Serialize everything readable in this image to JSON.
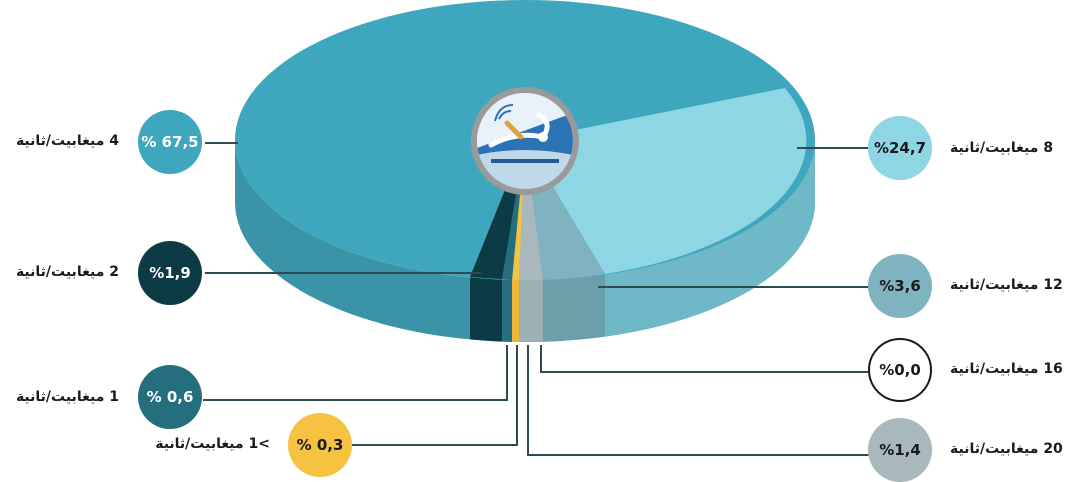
{
  "chart_data": {
    "type": "pie",
    "style": "3d",
    "unit_suffix": "ميغابيت/ثانية",
    "slices": [
      {
        "key": "4",
        "speed": "4",
        "value_label": "% 67,5",
        "value": 67.5,
        "color": "#3fa7bd",
        "circle_text": "#ffffff"
      },
      {
        "key": "8",
        "speed": "8",
        "value_label": "%24,7",
        "value": 24.7,
        "color": "#8fd6e5",
        "circle_text": "#1a1a1a"
      },
      {
        "key": "12",
        "speed": "12",
        "value_label": "%3,6",
        "value": 3.6,
        "color": "#7fb3bf",
        "circle_text": "#1a1a1a"
      },
      {
        "key": "16",
        "speed": "16",
        "value_label": "%0,0",
        "value": 0.0,
        "color": "#ffffff",
        "circle_text": "#1a1a1a"
      },
      {
        "key": "20",
        "speed": "20",
        "value_label": "%1,4",
        "value": 1.4,
        "color": "#a8b8bc",
        "circle_text": "#1a1a1a"
      },
      {
        "key": "lt1",
        "speed": ">1",
        "value_label": "% 0,3",
        "value": 0.3,
        "color": "#f5c242",
        "circle_text": "#1a1a1a"
      },
      {
        "key": "1",
        "speed": "1",
        "value_label": "% 0,6",
        "value": 0.6,
        "color": "#246e7e",
        "circle_text": "#ffffff"
      },
      {
        "key": "2",
        "speed": "2",
        "value_label": "%1,9",
        "value": 1.9,
        "color": "#0c3a45",
        "circle_text": "#ffffff"
      }
    ]
  },
  "logo": {
    "name": "operator-logo"
  }
}
